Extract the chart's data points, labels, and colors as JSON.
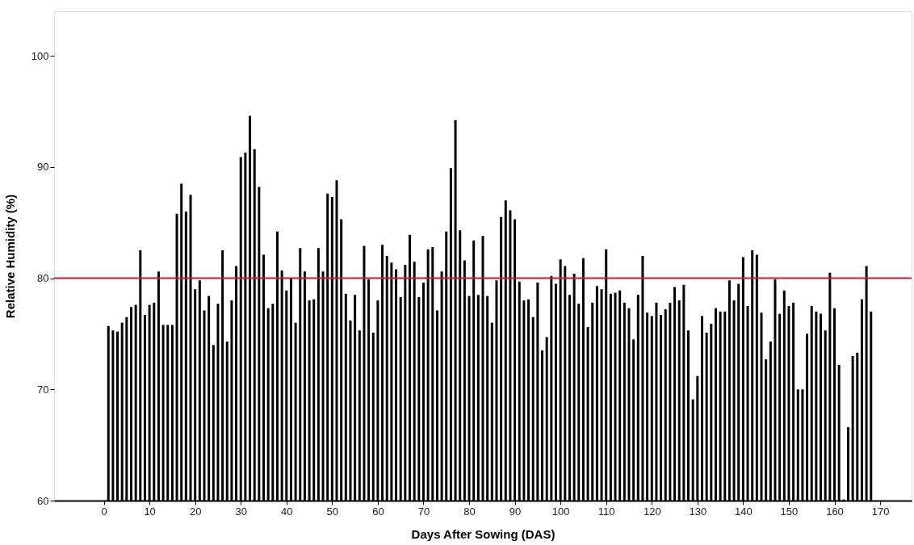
{
  "chart_data": {
    "type": "bar",
    "xlabel": "Days After Sowing (DAS)",
    "ylabel": "Relative Humidity (%)",
    "x": [
      1,
      2,
      3,
      4,
      5,
      6,
      7,
      8,
      9,
      10,
      11,
      12,
      13,
      14,
      15,
      16,
      17,
      18,
      19,
      20,
      21,
      22,
      23,
      24,
      25,
      26,
      27,
      28,
      29,
      30,
      31,
      32,
      33,
      34,
      35,
      36,
      37,
      38,
      39,
      40,
      41,
      42,
      43,
      44,
      45,
      46,
      47,
      48,
      49,
      50,
      51,
      52,
      53,
      54,
      55,
      56,
      57,
      58,
      59,
      60,
      61,
      62,
      63,
      64,
      65,
      66,
      67,
      68,
      69,
      70,
      71,
      72,
      73,
      74,
      75,
      76,
      77,
      78,
      79,
      80,
      81,
      82,
      83,
      84,
      85,
      86,
      87,
      88,
      89,
      90,
      91,
      92,
      93,
      94,
      95,
      96,
      97,
      98,
      99,
      100,
      101,
      102,
      103,
      104,
      105,
      106,
      107,
      108,
      109,
      110,
      111,
      112,
      113,
      114,
      115,
      116,
      117,
      118,
      119,
      120,
      121,
      122,
      123,
      124,
      125,
      126,
      127,
      128,
      129,
      130,
      131,
      132,
      133,
      134,
      135,
      136,
      137,
      138,
      139,
      140,
      141,
      142,
      143,
      144,
      145,
      146,
      147,
      148,
      149,
      150,
      151,
      152,
      153,
      154,
      155,
      156,
      157,
      158,
      159,
      160,
      161,
      162,
      163,
      164,
      165,
      166,
      167,
      168
    ],
    "values": [
      75.7,
      75.3,
      75.2,
      76.0,
      76.5,
      77.4,
      77.6,
      82.5,
      76.7,
      77.6,
      77.8,
      80.6,
      75.8,
      75.8,
      75.8,
      85.8,
      88.5,
      86.0,
      87.5,
      79.0,
      79.8,
      77.1,
      78.4,
      74.0,
      77.7,
      82.5,
      74.3,
      78.0,
      81.1,
      90.9,
      91.3,
      94.6,
      91.6,
      88.2,
      82.1,
      77.3,
      77.7,
      84.2,
      80.7,
      78.9,
      80.0,
      76.0,
      82.7,
      80.6,
      78.0,
      78.1,
      82.7,
      80.6,
      87.6,
      87.3,
      88.8,
      85.3,
      78.6,
      76.2,
      78.5,
      75.3,
      82.9,
      79.9,
      75.1,
      78.0,
      83.0,
      82.0,
      81.4,
      80.8,
      78.3,
      81.2,
      83.9,
      81.5,
      78.3,
      79.6,
      82.6,
      82.8,
      77.1,
      80.6,
      84.2,
      89.9,
      94.2,
      84.3,
      81.6,
      78.4,
      83.4,
      78.5,
      83.8,
      78.4,
      76.0,
      79.8,
      85.5,
      87.0,
      86.1,
      85.3,
      79.7,
      78.0,
      78.1,
      76.5,
      79.6,
      73.5,
      74.7,
      80.2,
      79.5,
      81.7,
      81.1,
      78.5,
      80.4,
      77.7,
      81.8,
      75.6,
      77.8,
      79.3,
      79.0,
      82.6,
      78.6,
      78.7,
      78.9,
      77.8,
      77.3,
      74.5,
      78.5,
      82.0,
      76.9,
      76.6,
      77.8,
      76.7,
      77.2,
      77.8,
      79.2,
      78.0,
      79.4,
      75.3,
      69.1,
      71.2,
      76.6,
      75.1,
      75.9,
      77.3,
      77.0,
      77.0,
      79.8,
      78.0,
      79.5,
      81.9,
      77.5,
      82.5,
      82.1,
      76.9,
      72.7,
      74.3,
      79.9,
      76.8,
      78.9,
      77.5,
      77.8,
      70.0,
      70.0,
      75.0,
      77.5,
      77.0,
      76.8,
      75.3,
      80.5,
      77.3,
      72.2,
      60.1,
      66.6,
      73.0,
      73.3,
      78.1,
      81.1,
      77.0
    ],
    "color": "#000000",
    "xlim": [
      -10,
      176
    ],
    "xticks": [
      0,
      10,
      20,
      30,
      40,
      50,
      60,
      70,
      80,
      90,
      100,
      110,
      120,
      130,
      140,
      150,
      160,
      170
    ],
    "ylim": [
      60,
      104
    ],
    "yticks": [
      60,
      70,
      80,
      90,
      100
    ],
    "ref_lines": [
      {
        "axis": "y",
        "value": 80,
        "color": "#d0143c"
      }
    ],
    "grid": false
  }
}
